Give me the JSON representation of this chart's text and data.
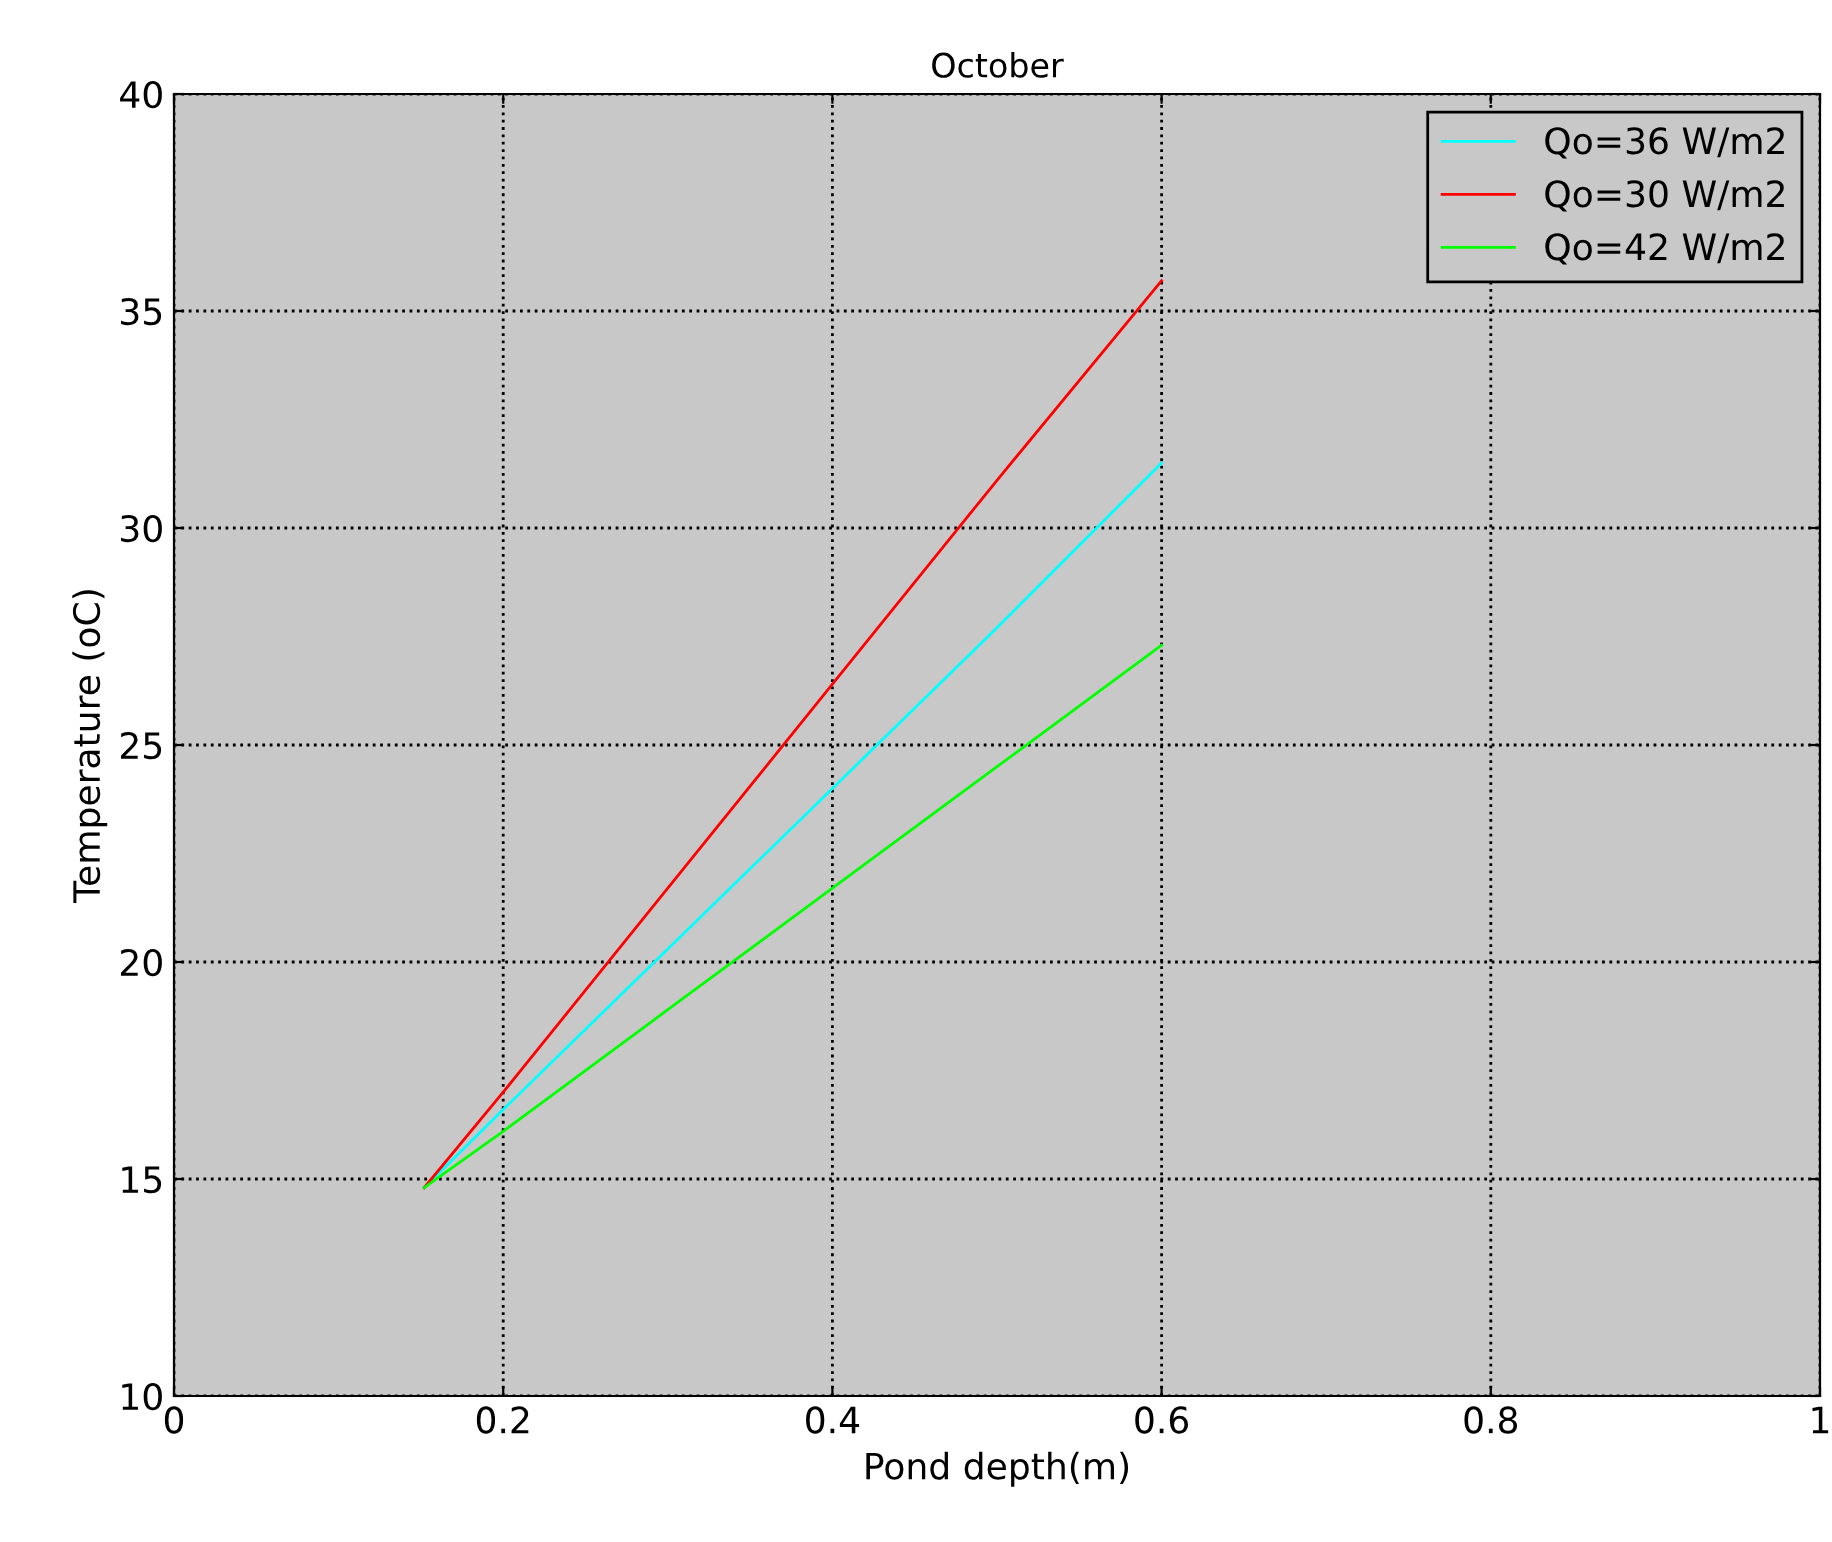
{
  "chart_data": {
    "type": "line",
    "title": "October",
    "xlabel": "Pond depth(m)",
    "ylabel": "Temperature (oC)",
    "xlim": [
      0,
      1
    ],
    "xticks": [
      0,
      0.2,
      0.4,
      0.6,
      0.8,
      1
    ],
    "ylim": [
      10,
      40
    ],
    "yticks": [
      10,
      15,
      20,
      25,
      30,
      35,
      40
    ],
    "grid": true,
    "legend": "top right",
    "line_style": "solid",
    "series": [
      {
        "name": "Qo=36 W/m2",
        "color": "#00ffff",
        "x": [
          0.152,
          0.2,
          0.3,
          0.4,
          0.5,
          0.6
        ],
        "values": [
          14.8,
          16.6,
          20.3,
          24.0,
          27.7,
          31.5
        ]
      },
      {
        "name": "Qo=30 W/m2",
        "color": "#ff0000",
        "x": [
          0.152,
          0.2,
          0.3,
          0.4,
          0.5,
          0.6
        ],
        "values": [
          14.8,
          17.0,
          21.7,
          26.4,
          31.1,
          35.7
        ]
      },
      {
        "name": "Qo=42 W/m2",
        "color": "#00ff00",
        "x": [
          0.152,
          0.2,
          0.3,
          0.4,
          0.5,
          0.6
        ],
        "values": [
          14.8,
          16.1,
          18.9,
          21.7,
          24.5,
          27.3
        ]
      }
    ]
  }
}
